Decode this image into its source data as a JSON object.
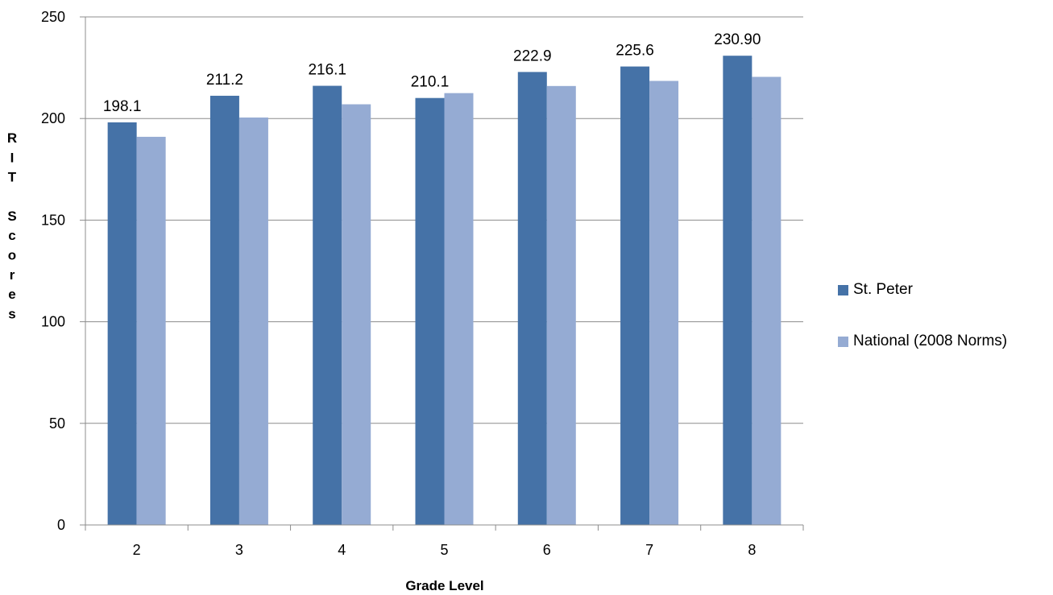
{
  "chart_data": {
    "type": "bar",
    "title": "",
    "xlabel": "Grade Level",
    "ylabel": "RIT Scores",
    "categories": [
      "2",
      "3",
      "4",
      "5",
      "6",
      "7",
      "8"
    ],
    "series": [
      {
        "name": "St. Peter",
        "color": "#4572A7",
        "values": [
          198.1,
          211.2,
          216.1,
          210.1,
          222.9,
          225.6,
          230.9
        ],
        "labels": [
          "198.1",
          "211.2",
          "216.1",
          "210.1",
          "222.9",
          "225.6",
          "230.90"
        ]
      },
      {
        "name": "National (2008 Norms)",
        "color": "#95ABD3",
        "values": [
          191,
          200.5,
          207,
          212.5,
          216,
          218.5,
          220.5
        ]
      }
    ],
    "ylim": [
      0,
      250
    ],
    "yticks": [
      "0",
      "50",
      "100",
      "150",
      "200",
      "250"
    ],
    "grid": true,
    "legend_position": "right"
  }
}
